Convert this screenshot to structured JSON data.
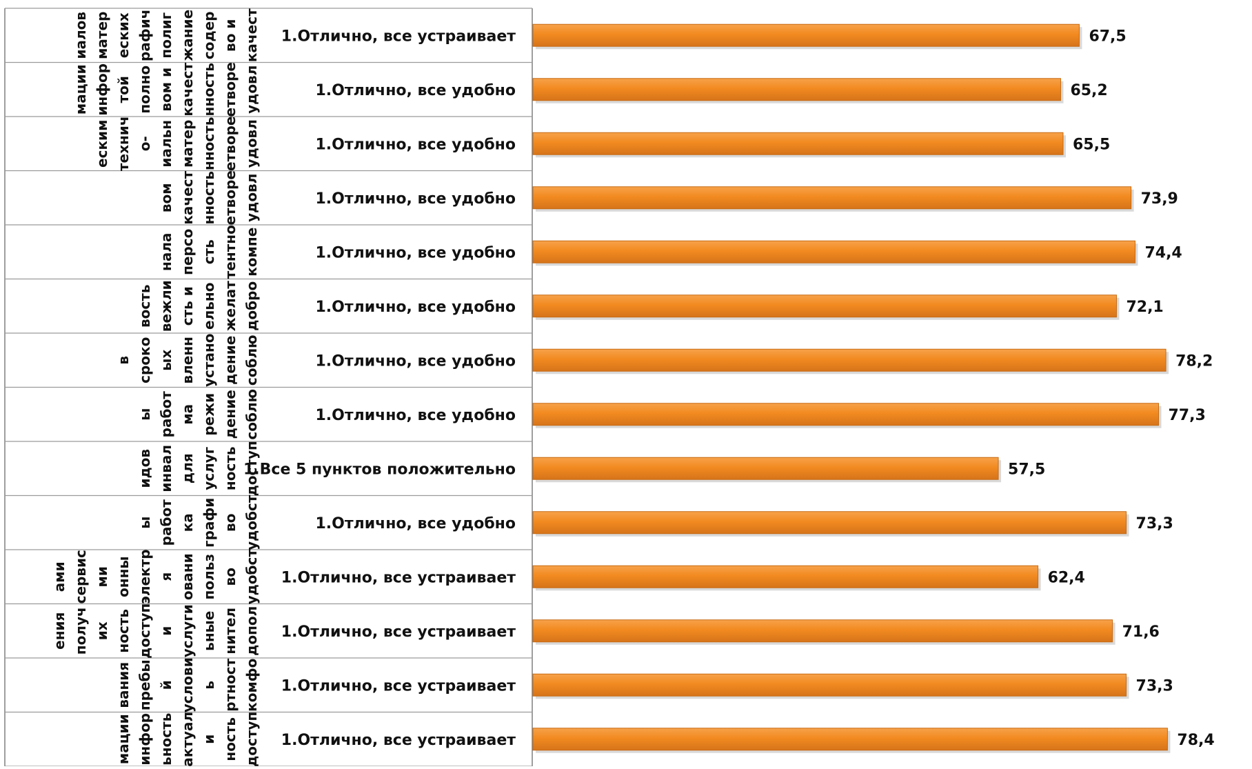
{
  "chart_data": {
    "type": "bar",
    "orientation": "horizontal",
    "bar_color": "#f28a20",
    "bar_edge_color": "#c76a12",
    "title": "",
    "xlabel": "",
    "ylabel": "",
    "grid": false,
    "legend": "none",
    "rows": [
      {
        "group": "качество содержание полиграфических материалов",
        "category": "1.Отлично, все устраивает",
        "value": 67.5,
        "value_label": "67,5"
      },
      {
        "group": "удовлетворенность качеством и полнотой информации",
        "category": "1.Отлично, все удобно",
        "value": 65.2,
        "value_label": "65,2"
      },
      {
        "group": "удовлетворенность материально-техническим",
        "category": "1.Отлично, все удобно",
        "value": 65.5,
        "value_label": "65,5"
      },
      {
        "group": "удовлетворенность качеством",
        "category": "1.Отлично, все удобно",
        "value": 73.9,
        "value_label": "73,9"
      },
      {
        "group": "компетентность персонала",
        "category": "1.Отлично, все удобно",
        "value": 74.4,
        "value_label": "74,4"
      },
      {
        "group": "доброжелательность и вежливость",
        "category": "1.Отлично, все удобно",
        "value": 72.1,
        "value_label": "72,1"
      },
      {
        "group": "соблюдение установленных сроков",
        "category": "1.Отлично, все удобно",
        "value": 78.2,
        "value_label": "78,2"
      },
      {
        "group": "соблюдение режима работы",
        "category": "1.Отлично, все удобно",
        "value": 77.3,
        "value_label": "77,3"
      },
      {
        "group": "доступность услуг для инвалидов",
        "category": "1.Все 5 пунктов положительно",
        "value": 57.5,
        "value_label": "57,5"
      },
      {
        "group": "удобство графика работы",
        "category": "1.Отлично, все удобно",
        "value": 73.3,
        "value_label": "73,3"
      },
      {
        "group": "удобство пользования электронными сервисами",
        "category": "1.Отлично, все устраивает",
        "value": 62.4,
        "value_label": "62,4"
      },
      {
        "group": "дополнительные услуги и доступность их получения",
        "category": "1.Отлично, все устраивает",
        "value": 71.6,
        "value_label": "71,6"
      },
      {
        "group": "комфортность условий пребывания",
        "category": "1.Отлично, все устраивает",
        "value": 73.3,
        "value_label": "73,3"
      },
      {
        "group": "доступность и актуальность информации",
        "category": "1.Отлично, все устраивает",
        "value": 78.4,
        "value_label": "78,4"
      }
    ],
    "group_label_lines": [
      [
        "качест",
        "во и",
        "содер",
        "жание",
        "полиг",
        "рафич",
        "еских",
        "матер",
        "иалов"
      ],
      [
        "удовл",
        "етворе",
        "нность",
        "качест",
        "вом и",
        "полно",
        "той",
        "инфор",
        "мации"
      ],
      [
        "удовл",
        "етворе",
        "нность",
        "матер",
        "иальн",
        "о-",
        "технич",
        "еским"
      ],
      [
        "удовл",
        "етворе",
        "нность",
        "качест",
        "вом"
      ],
      [
        "компе",
        "тентно",
        "сть",
        "персо",
        "нала"
      ],
      [
        "добро",
        "желат",
        "ельно",
        "сть и",
        "вежли",
        "вость"
      ],
      [
        "соблю",
        "дение",
        "устано",
        "вленн",
        "ых",
        "сроко",
        "в"
      ],
      [
        "соблю",
        "дение",
        "режи",
        "ма",
        "работ",
        "ы"
      ],
      [
        "доступ",
        "ность",
        "услуг",
        "для",
        "инвал",
        "идов"
      ],
      [
        "удобст",
        "во",
        "графи",
        "ка",
        "работ",
        "ы"
      ],
      [
        "удобст",
        "во",
        "польз",
        "овани",
        "я",
        "электр",
        "онны",
        "ми",
        "сервис",
        "ами"
      ],
      [
        "допол",
        "нител",
        "ьные",
        "услуги",
        "и",
        "доступ",
        "ность",
        "их",
        "получ",
        "ения"
      ],
      [
        "комфо",
        "ртност",
        "ь",
        "услови",
        "й",
        "пребы",
        "вания"
      ],
      [
        "доступ",
        "ность",
        "и",
        "актуал",
        "ьность",
        "инфор",
        "мации"
      ]
    ]
  }
}
